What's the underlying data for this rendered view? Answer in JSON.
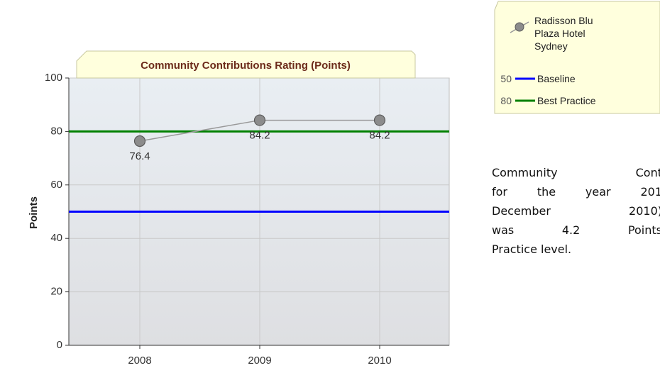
{
  "chart_data": {
    "type": "line",
    "title": "Community Contributions Rating (Points)",
    "y_label": "Points",
    "categories": [
      "2008",
      "2009",
      "2010"
    ],
    "series": [
      {
        "name": "Radisson Blu Plaza Hotel Sydney",
        "color": "#999999",
        "values": [
          76.4,
          84.2,
          84.2
        ]
      }
    ],
    "reference_lines": [
      {
        "name": "Baseline",
        "value": 50,
        "color": "#0000ff"
      },
      {
        "name": "Best Practice",
        "value": 80,
        "color": "#008000"
      }
    ],
    "ylim": [
      0,
      100
    ],
    "yticks": [
      0,
      20,
      40,
      60,
      80,
      100
    ],
    "grid": true
  },
  "text": {
    "lines": [
      "Community Cont",
      "for the year 201",
      "December 2010)",
      "was 4.2 Points",
      "Practice level."
    ]
  }
}
